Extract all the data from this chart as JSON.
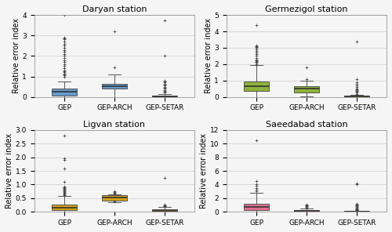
{
  "subplots": [
    {
      "title": "Daryan station",
      "color": "#6699CC",
      "ylabel": "Relative error index",
      "ylim": [
        0,
        4
      ],
      "yticks": [
        0,
        1,
        2,
        3,
        4
      ],
      "groups": [
        "GEP",
        "GEP-ARCH",
        "GEP-SETAR"
      ],
      "boxes": [
        {
          "q1": 0.08,
          "median": 0.25,
          "q3": 0.42,
          "whislo": 0.0,
          "whishi": 0.75,
          "fliers_high": [
            1.0,
            1.05,
            1.1,
            1.15,
            1.2,
            1.25,
            1.3,
            1.4,
            1.5,
            1.6,
            1.7,
            1.8,
            1.9,
            2.0,
            2.1,
            2.2,
            2.3,
            2.4,
            2.5,
            2.6,
            2.7,
            2.8,
            2.85,
            2.9,
            4.0
          ],
          "fliers_low": []
        },
        {
          "q1": 0.42,
          "median": 0.52,
          "q3": 0.65,
          "whislo": 0.0,
          "whishi": 1.1,
          "fliers_high": [
            1.45,
            3.2
          ],
          "fliers_low": []
        },
        {
          "q1": 0.01,
          "median": 0.04,
          "q3": 0.08,
          "whislo": 0.0,
          "whishi": 0.15,
          "fliers_high": [
            0.2,
            0.25,
            0.3,
            0.35,
            0.4,
            0.45,
            0.5,
            0.55,
            0.6,
            0.65,
            0.7,
            0.75,
            0.8,
            2.0,
            3.75
          ],
          "fliers_low": []
        }
      ]
    },
    {
      "title": "Germezigol station",
      "color": "#8DB33A",
      "ylabel": "Relative error index",
      "ylim": [
        0,
        5
      ],
      "yticks": [
        0,
        1,
        2,
        3,
        4,
        5
      ],
      "groups": [
        "GEP",
        "GEP-ARCH",
        "GEP-SETAR"
      ],
      "boxes": [
        {
          "q1": 0.35,
          "median": 0.65,
          "q3": 0.95,
          "whislo": 0.0,
          "whishi": 1.95,
          "fliers_high": [
            2.0,
            2.1,
            2.15,
            2.2,
            2.25,
            2.3,
            2.4,
            2.5,
            2.6,
            2.7,
            2.8,
            2.9,
            3.0,
            3.05,
            3.1,
            3.15,
            4.4
          ],
          "fliers_low": []
        },
        {
          "q1": 0.25,
          "median": 0.5,
          "q3": 0.65,
          "whislo": 0.02,
          "whishi": 1.0,
          "fliers_high": [
            1.1,
            1.8
          ],
          "fliers_low": []
        },
        {
          "q1": 0.01,
          "median": 0.03,
          "q3": 0.06,
          "whislo": 0.0,
          "whishi": 0.12,
          "fliers_high": [
            0.15,
            0.2,
            0.25,
            0.3,
            0.35,
            0.4,
            0.45,
            0.5,
            0.6,
            0.7,
            0.8,
            0.9,
            1.1,
            3.4
          ],
          "fliers_low": []
        }
      ]
    },
    {
      "title": "Ligvan station",
      "color": "#D4A017",
      "ylabel": "Relative error index",
      "ylim": [
        0,
        3.0
      ],
      "yticks": [
        0.0,
        0.5,
        1.0,
        1.5,
        2.0,
        2.5,
        3.0
      ],
      "groups": [
        "GEP",
        "GEP-ARCH",
        "GEP-SETAR"
      ],
      "boxes": [
        {
          "q1": 0.08,
          "median": 0.15,
          "q3": 0.26,
          "whislo": 0.0,
          "whishi": 0.58,
          "fliers_high": [
            0.62,
            0.65,
            0.68,
            0.7,
            0.73,
            0.76,
            0.79,
            0.82,
            0.85,
            0.88,
            0.91,
            0.94,
            1.1,
            1.6,
            1.9,
            1.95,
            2.8
          ],
          "fliers_low": []
        },
        {
          "q1": 0.42,
          "median": 0.52,
          "q3": 0.6,
          "whislo": 0.35,
          "whishi": 0.65,
          "fliers_high": [
            0.68,
            0.7,
            0.72,
            0.75
          ],
          "fliers_low": [
            0.38
          ]
        },
        {
          "q1": 0.02,
          "median": 0.05,
          "q3": 0.1,
          "whislo": 0.0,
          "whishi": 0.18,
          "fliers_high": [
            0.2,
            0.22,
            0.25,
            0.28,
            1.25
          ],
          "fliers_low": []
        }
      ]
    },
    {
      "title": "Saeedabad station",
      "color": "#E07090",
      "ylabel": "Relative error index",
      "ylim": [
        0,
        12
      ],
      "yticks": [
        0,
        2,
        4,
        6,
        8,
        10,
        12
      ],
      "groups": [
        "GEP",
        "GEP-ARCH",
        "GEP-SETAR"
      ],
      "boxes": [
        {
          "q1": 0.3,
          "median": 0.7,
          "q3": 1.2,
          "whislo": 0.0,
          "whishi": 2.8,
          "fliers_high": [
            3.0,
            3.2,
            3.5,
            3.8,
            4.0,
            4.5,
            10.5
          ],
          "fliers_low": []
        },
        {
          "q1": 0.08,
          "median": 0.15,
          "q3": 0.25,
          "whislo": 0.0,
          "whishi": 0.5,
          "fliers_high": [
            0.6,
            0.7,
            0.8,
            0.9,
            1.0,
            1.1
          ],
          "fliers_low": []
        },
        {
          "q1": 0.02,
          "median": 0.05,
          "q3": 0.12,
          "whislo": 0.0,
          "whishi": 0.2,
          "fliers_high": [
            0.25,
            0.3,
            0.35,
            0.4,
            0.5,
            0.6,
            0.7,
            0.8,
            0.9,
            1.0,
            1.1,
            1.2,
            4.0,
            4.2
          ],
          "fliers_low": []
        }
      ]
    }
  ],
  "background_color": "#f5f5f5",
  "grid_color": "#cccccc",
  "title_fontsize": 8,
  "label_fontsize": 7,
  "tick_fontsize": 6.5
}
